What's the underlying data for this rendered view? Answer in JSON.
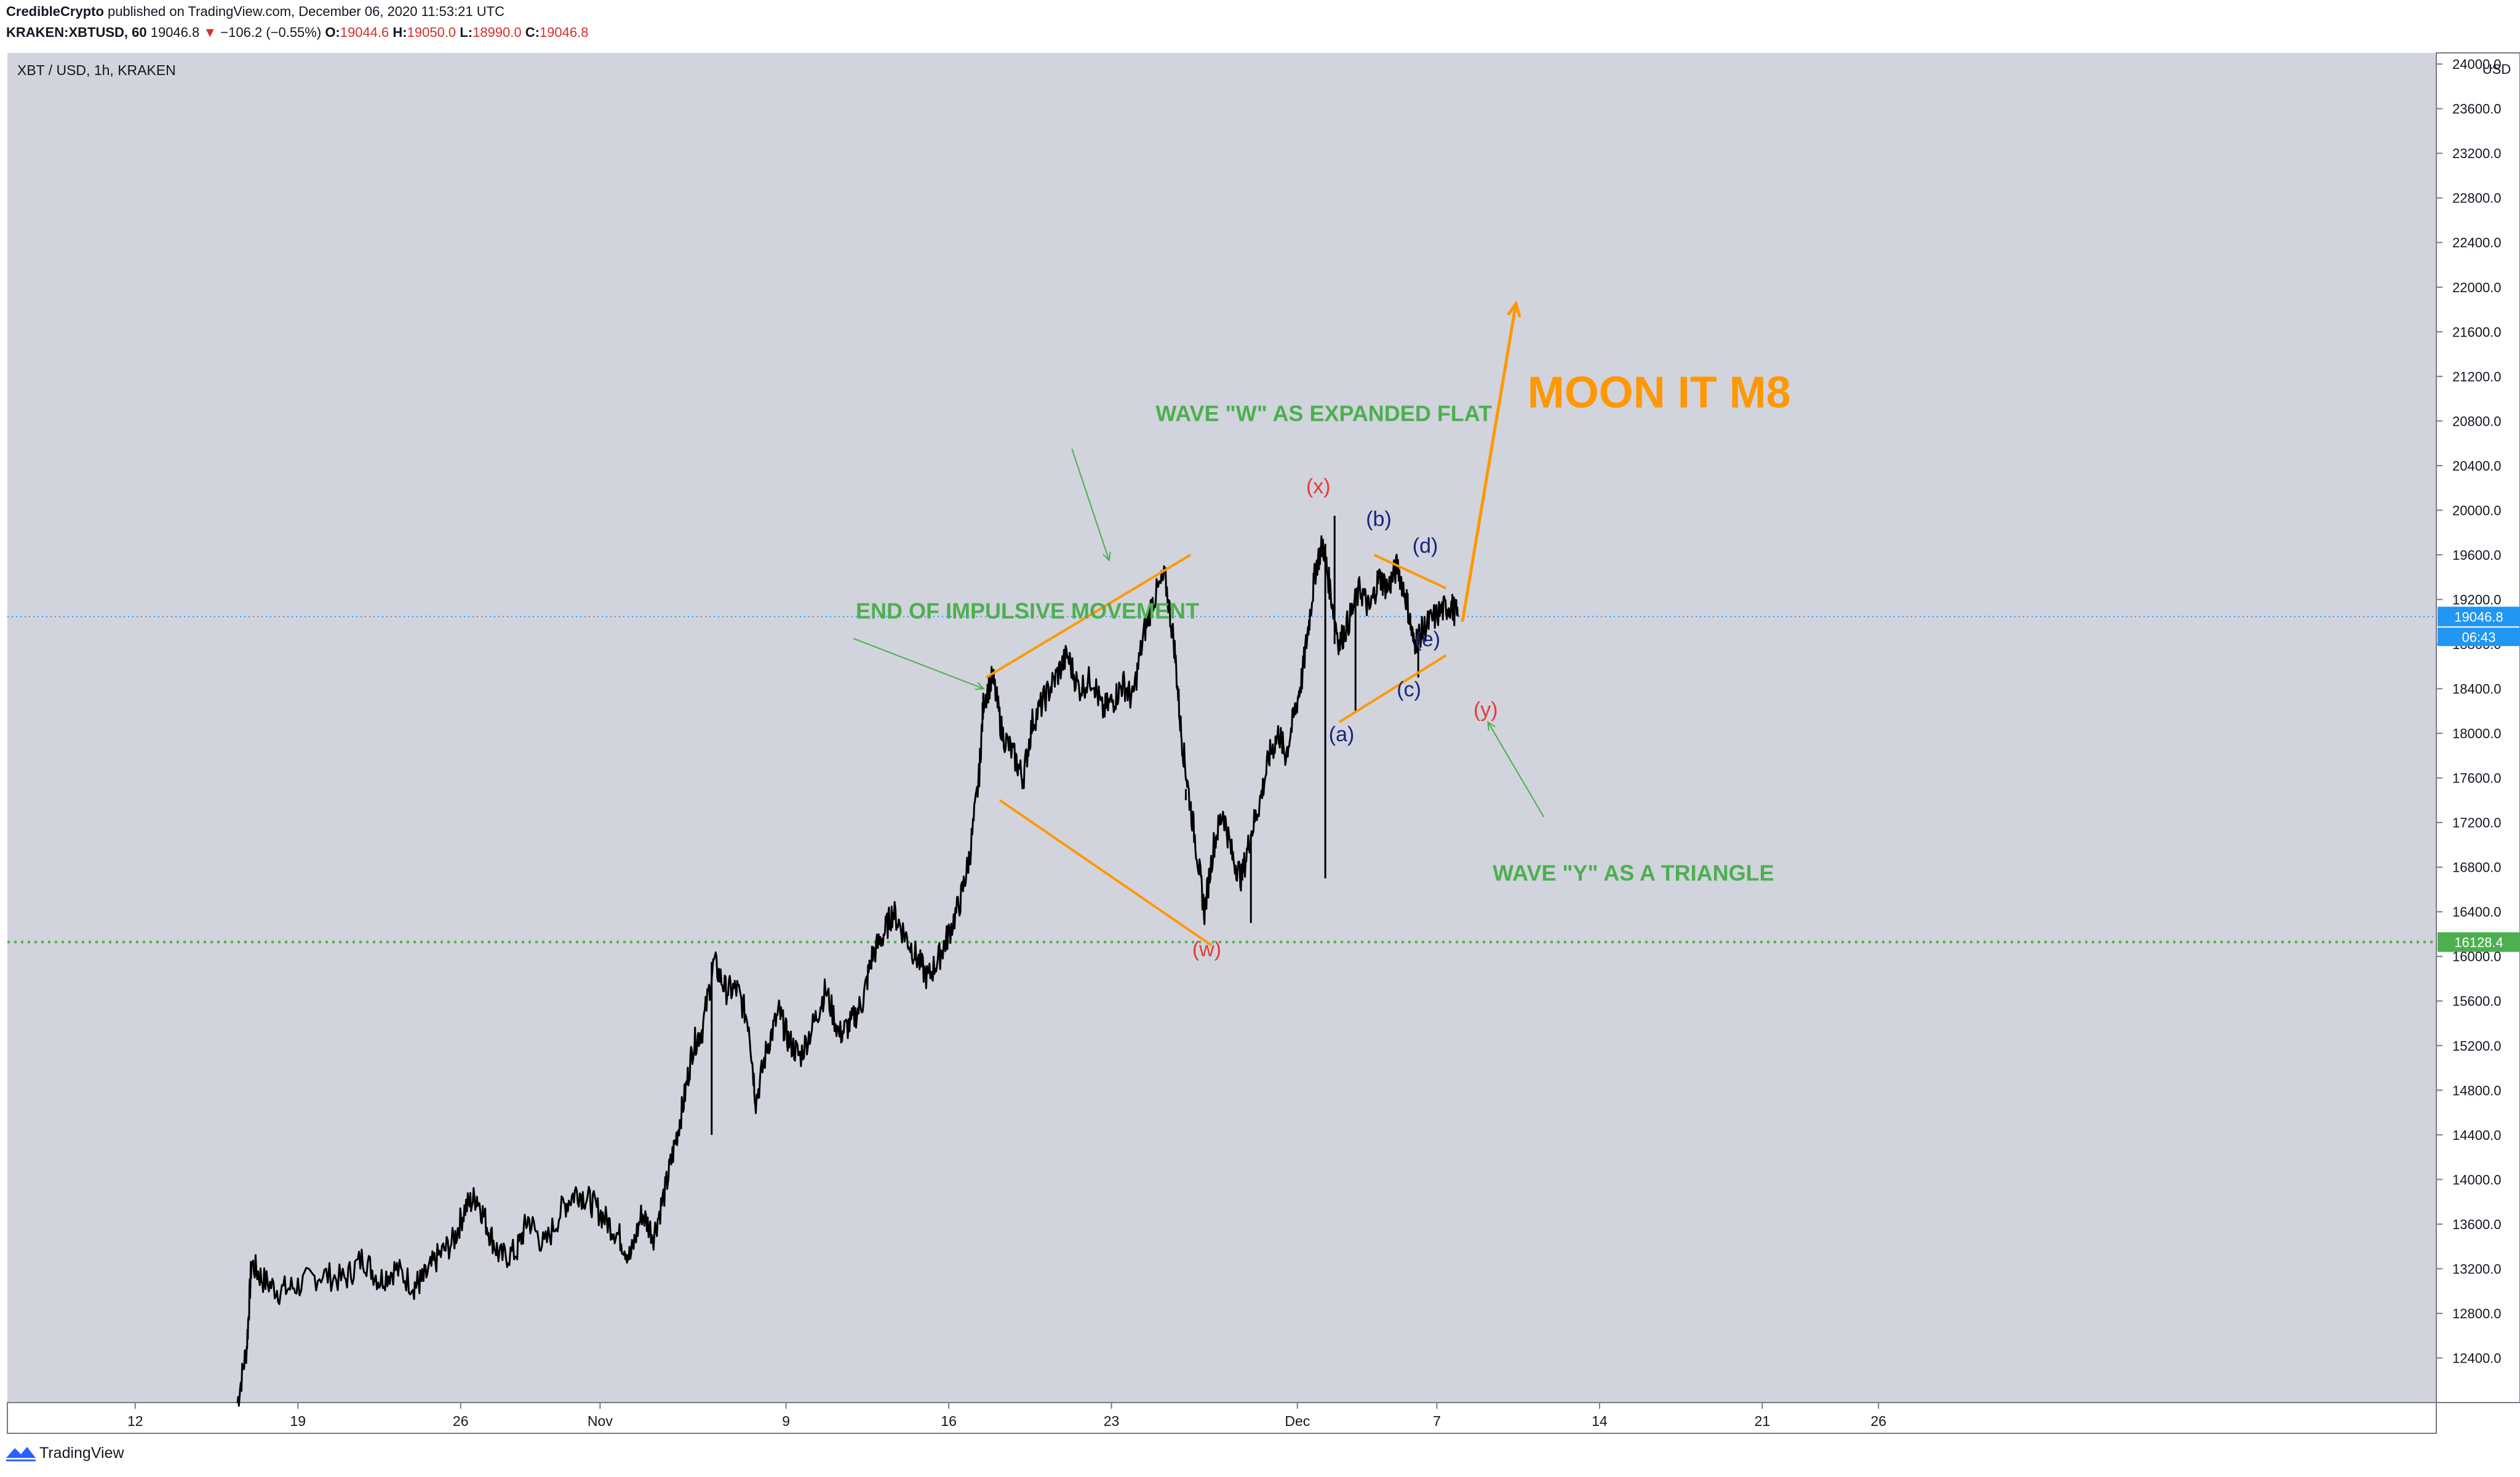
{
  "header": {
    "author": "CredibleCrypto",
    "published_text": "published on TradingView.com, December 06, 2020 11:53:21 UTC",
    "symbol": "KRAKEN:XBTUSD, 60",
    "last": "19046.8",
    "down_arrow": "▼",
    "change": "−106.2 (−0.55%)",
    "o_label": "O:",
    "o_value": "19044.6",
    "h_label": "H:",
    "h_value": "19050.0",
    "l_label": "L:",
    "l_value": "18990.0",
    "c_label": "C:",
    "c_value": "19046.8"
  },
  "footer": {
    "brand": "TradingView",
    "logo_icon": "tradingview-logo-icon"
  },
  "colors": {
    "background": "#d1d4dc",
    "candles": "#000000",
    "annotation_green": "#4caf50",
    "annotation_orange": "#ff9800",
    "label_red": "#e53935",
    "label_navy": "#1a237e",
    "price_tag": "#2196f3",
    "support_tag": "#4caf50"
  },
  "chart_data": {
    "type": "candlestick",
    "title": "XBT / USD, 1h, KRAKEN",
    "currency": "USD",
    "y_ticks": [
      12400,
      12800,
      13200,
      13600,
      14000,
      14400,
      14800,
      15200,
      15600,
      16000,
      16400,
      16800,
      17200,
      17600,
      18000,
      18400,
      18800,
      19200,
      19600,
      20000,
      20400,
      20800,
      21200,
      21600,
      22000,
      22400,
      22800,
      23200,
      23600,
      24000
    ],
    "ylim": [
      12000,
      24100
    ],
    "x_ticks": [
      {
        "label": "12",
        "day": -19
      },
      {
        "label": "19",
        "day": -12
      },
      {
        "label": "26",
        "day": -5
      },
      {
        "label": "Nov",
        "day": 1
      },
      {
        "label": "9",
        "day": 9
      },
      {
        "label": "16",
        "day": 16
      },
      {
        "label": "23",
        "day": 23
      },
      {
        "label": "Dec",
        "day": 31
      },
      {
        "label": "7",
        "day": 37
      },
      {
        "label": "14",
        "day": 44
      },
      {
        "label": "21",
        "day": 51
      },
      {
        "label": "26",
        "day": 56
      }
    ],
    "x_axis_days_note": "days counted from Oct 31 (Nov 1 = 1, Dec 1 = 31)",
    "xlim": [
      -24.5,
      80
    ],
    "last_price": {
      "value": 19046.8,
      "label": "19046.8",
      "countdown": "06:43"
    },
    "support_line": {
      "value": 16128.4,
      "label": "16128.4"
    },
    "price_path": [
      [
        -14.6,
        12000
      ],
      [
        -14.2,
        12500
      ],
      [
        -14.0,
        13250
      ],
      [
        -13.5,
        13100
      ],
      [
        -12.8,
        13000
      ],
      [
        -12,
        13050
      ],
      [
        -11,
        13150
      ],
      [
        -10,
        13100
      ],
      [
        -9.2,
        13300
      ],
      [
        -8.5,
        13100
      ],
      [
        -7.8,
        13200
      ],
      [
        -7,
        13050
      ],
      [
        -6.6,
        13100
      ],
      [
        -6,
        13300
      ],
      [
        -5.3,
        13450
      ],
      [
        -4.8,
        13750
      ],
      [
        -4.3,
        13850
      ],
      [
        -3.8,
        13550
      ],
      [
        -3.3,
        13300
      ],
      [
        -2.6,
        13350
      ],
      [
        -2.1,
        13650
      ],
      [
        -1.4,
        13400
      ],
      [
        -0.6,
        13750
      ],
      [
        0,
        13900
      ],
      [
        0.6,
        13800
      ],
      [
        1.2,
        13650
      ],
      [
        1.8,
        13500
      ],
      [
        2.3,
        13300
      ],
      [
        2.8,
        13700
      ],
      [
        3.3,
        13500
      ],
      [
        3.8,
        13900
      ],
      [
        4.2,
        14300
      ],
      [
        4.6,
        14700
      ],
      [
        5.0,
        15200
      ],
      [
        5.4,
        15350
      ],
      [
        5.9,
        15950
      ],
      [
        6.4,
        15700
      ],
      [
        6.9,
        15700
      ],
      [
        7.4,
        15400
      ],
      [
        7.7,
        14700
      ],
      [
        8.2,
        15200
      ],
      [
        8.7,
        15500
      ],
      [
        9.1,
        15250
      ],
      [
        9.6,
        15100
      ],
      [
        10.2,
        15400
      ],
      [
        10.7,
        15700
      ],
      [
        11.3,
        15300
      ],
      [
        11.8,
        15400
      ],
      [
        12.3,
        15600
      ],
      [
        12.7,
        16000
      ],
      [
        13.2,
        16200
      ],
      [
        13.6,
        16400
      ],
      [
        14.1,
        16200
      ],
      [
        14.6,
        16000
      ],
      [
        15.1,
        15800
      ],
      [
        15.6,
        16000
      ],
      [
        16.0,
        16200
      ],
      [
        16.5,
        16500
      ],
      [
        16.9,
        16900
      ],
      [
        17.3,
        17600
      ],
      [
        17.5,
        18300
      ],
      [
        17.9,
        18500
      ],
      [
        18.3,
        18000
      ],
      [
        18.8,
        17800
      ],
      [
        19.2,
        17600
      ],
      [
        19.6,
        18100
      ],
      [
        20.1,
        18300
      ],
      [
        20.6,
        18500
      ],
      [
        21.1,
        18700
      ],
      [
        21.6,
        18400
      ],
      [
        22.2,
        18500
      ],
      [
        22.6,
        18200
      ],
      [
        23.1,
        18300
      ],
      [
        23.5,
        18450
      ],
      [
        23.9,
        18300
      ],
      [
        24.4,
        18900
      ],
      [
        24.8,
        19200
      ],
      [
        25.3,
        19400
      ],
      [
        25.7,
        18800
      ],
      [
        26.0,
        18000
      ],
      [
        26.3,
        17500
      ],
      [
        26.7,
        16900
      ],
      [
        27.0,
        16400
      ],
      [
        27.4,
        17000
      ],
      [
        27.8,
        17300
      ],
      [
        28.2,
        16900
      ],
      [
        28.6,
        16700
      ],
      [
        29.0,
        17100
      ],
      [
        29.4,
        17400
      ],
      [
        29.8,
        17800
      ],
      [
        30.2,
        18000
      ],
      [
        30.5,
        17800
      ],
      [
        30.9,
        18200
      ],
      [
        31.2,
        18500
      ],
      [
        31.5,
        19000
      ],
      [
        31.8,
        19500
      ],
      [
        32.1,
        19700
      ],
      [
        32.4,
        19300
      ],
      [
        32.8,
        18800
      ],
      [
        33.2,
        19000
      ],
      [
        33.7,
        19300
      ],
      [
        34.1,
        19100
      ],
      [
        34.5,
        19400
      ],
      [
        34.9,
        19300
      ],
      [
        35.3,
        19500
      ],
      [
        35.7,
        19200
      ],
      [
        36.0,
        18800
      ],
      [
        36.3,
        18900
      ],
      [
        36.7,
        19000
      ],
      [
        37.2,
        19100
      ],
      [
        37.6,
        19150
      ],
      [
        37.9,
        19046.8
      ]
    ],
    "spikes": [
      [
        26.2,
        17400
      ],
      [
        32.2,
        16700
      ],
      [
        33.5,
        18200
      ],
      [
        32.6,
        19950
      ],
      [
        29.0,
        16300
      ],
      [
        5.8,
        14400
      ],
      [
        36.2,
        18500
      ]
    ],
    "wave_labels": [
      {
        "text": "(w)",
        "day": 27.1,
        "price": 16000,
        "color": "red"
      },
      {
        "text": "(x)",
        "day": 31.9,
        "price": 20150,
        "color": "red"
      },
      {
        "text": "(y)",
        "day": 39.1,
        "price": 18150,
        "color": "red"
      },
      {
        "text": "(a)",
        "day": 32.9,
        "price": 17930,
        "color": "navy"
      },
      {
        "text": "(b)",
        "day": 34.5,
        "price": 19860,
        "color": "navy"
      },
      {
        "text": "(c)",
        "day": 35.8,
        "price": 18330,
        "color": "navy"
      },
      {
        "text": "(d)",
        "day": 36.5,
        "price": 19620,
        "color": "navy"
      },
      {
        "text": "(e)",
        "day": 36.6,
        "price": 18780,
        "color": "navy"
      }
    ],
    "annotations": [
      {
        "text": "WAVE \"W\" AS EXPANDED FLAT",
        "day": 24.9,
        "price": 20800,
        "color": "green"
      },
      {
        "text": "END OF IMPULSIVE MOVEMENT",
        "day": 12.0,
        "price": 19030,
        "color": "green"
      },
      {
        "text": "WAVE \"Y\" AS A TRIANGLE",
        "day": 39.4,
        "price": 16680,
        "color": "green"
      },
      {
        "text": "MOON IT M8",
        "day": 40.9,
        "price": 20920,
        "color": "orange"
      }
    ],
    "trendlines": [
      [
        [
          17.6,
          18500
        ],
        [
          26.4,
          19600
        ]
      ],
      [
        [
          18.2,
          17400
        ],
        [
          27.3,
          16100
        ]
      ],
      [
        [
          32.8,
          18100
        ],
        [
          37.4,
          18700
        ]
      ],
      [
        [
          34.3,
          19600
        ],
        [
          37.4,
          19300
        ]
      ]
    ],
    "arrows": [
      {
        "from": [
          38.1,
          19000
        ],
        "to": [
          40.4,
          21850
        ],
        "color": "orange",
        "width": 5,
        "head": 22
      },
      {
        "from": [
          21.3,
          20550
        ],
        "to": [
          22.9,
          19550
        ],
        "color": "green",
        "width": 2,
        "head": 14
      },
      {
        "from": [
          11.9,
          18850
        ],
        "to": [
          17.5,
          18400
        ],
        "color": "green",
        "width": 2,
        "head": 14
      },
      {
        "from": [
          41.6,
          17250
        ],
        "to": [
          39.2,
          18100
        ],
        "color": "green",
        "width": 2,
        "head": 14
      }
    ]
  }
}
